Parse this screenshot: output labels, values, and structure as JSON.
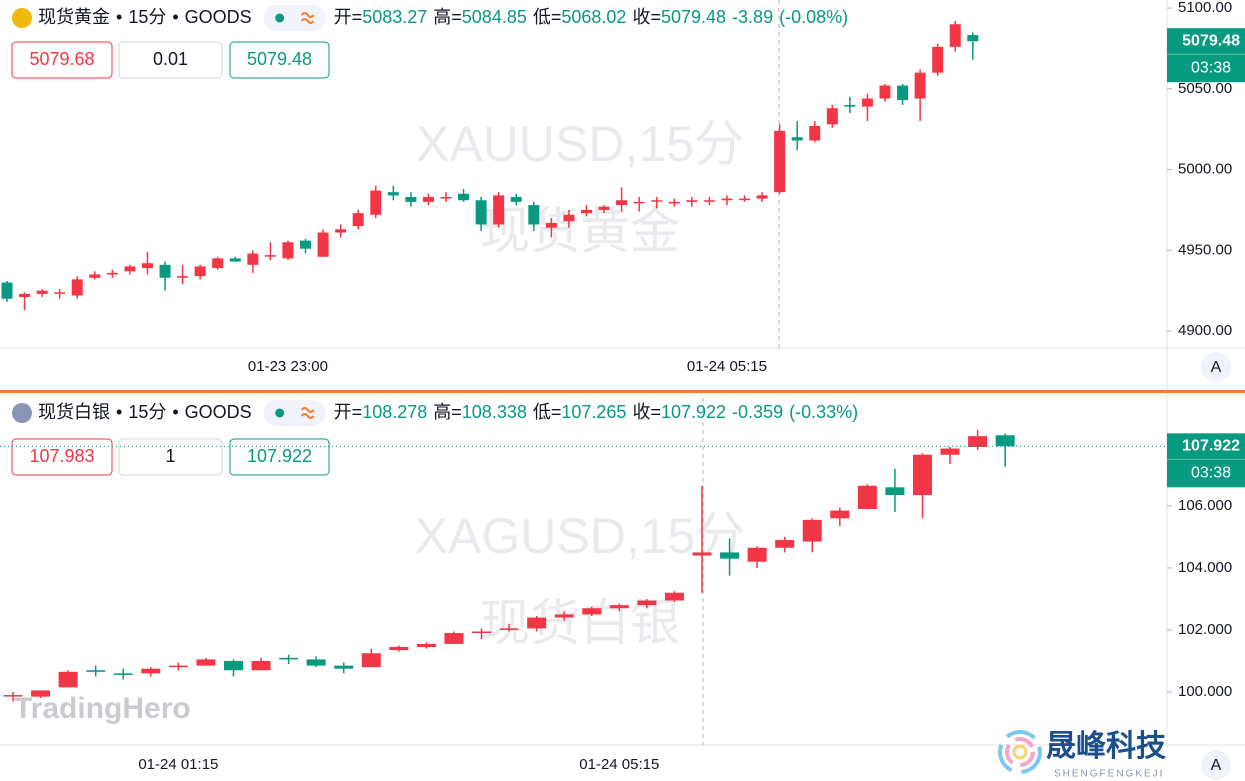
{
  "branding": {
    "left": "TradingHero",
    "right": "晟峰科技",
    "right_sub": "SHENGFENGKEJI"
  },
  "chart_data": [
    {
      "type": "candlestick",
      "symbol": "现货黄金",
      "interval": "15分",
      "source": "GOODS",
      "separator": "•",
      "quote": {
        "open_label": "开=",
        "open": 5083.27,
        "high_label": "高=",
        "high": 5084.85,
        "low_label": "低=",
        "low": 5068.02,
        "close_label": "收=",
        "close": 5079.48,
        "change": -3.89,
        "change_pct": {
          "value": -0.08,
          "label": "(-0.08%)"
        }
      },
      "sell_price": 5079.68,
      "quantity": 0.01,
      "buy_price": 5079.48,
      "countdown": "03:38",
      "auto_label": "A",
      "watermark": [
        "XAUUSD,15分",
        "现货黄金"
      ],
      "up_color": "#f23645",
      "down_color": "#089981",
      "categories": [
        null,
        null,
        null,
        null,
        null,
        null,
        null,
        null,
        null,
        null,
        null,
        null,
        null,
        null,
        null,
        null,
        "01-23 23:00",
        null,
        null,
        null,
        null,
        null,
        null,
        null,
        null,
        null,
        null,
        null,
        null,
        null,
        null,
        null,
        null,
        null,
        null,
        null,
        null,
        null,
        null,
        null,
        null,
        "01-24 05:15",
        null,
        null,
        null,
        null,
        null,
        null,
        null,
        null,
        null,
        null,
        null,
        null,
        null,
        null
      ],
      "open": [
        4930,
        4921,
        4923,
        4924,
        4922,
        4933,
        4935,
        4937,
        4939,
        4941,
        4933,
        4934,
        4939,
        4945,
        4941,
        4947,
        4945,
        4956,
        4946,
        4961,
        4965,
        4972,
        4986,
        4983,
        4980,
        4983,
        4985,
        4981,
        4966,
        4983,
        4978,
        4964,
        4968,
        4973,
        4975,
        4978,
        4980,
        4981,
        4979,
        4980,
        4981,
        4981,
        4982,
        4982,
        4986,
        5020,
        5018,
        5028,
        5040,
        5039,
        5044,
        5052,
        5044,
        5060,
        5076,
        5083.27
      ],
      "high": [
        4931,
        4924,
        4926,
        4926,
        4934,
        4937,
        4938,
        4941,
        4949,
        4943,
        4941,
        4941,
        4946,
        4946,
        4950,
        4955,
        4956,
        4957,
        4963,
        4966,
        4975,
        4990,
        4990,
        4986,
        4985,
        4986,
        4988,
        4983,
        4986,
        4985,
        4980,
        4970,
        4975,
        4978,
        4978,
        4989,
        4983,
        4983,
        4982,
        4983,
        4983,
        4984,
        4984,
        4986,
        5028,
        5030,
        5030,
        5040,
        5045,
        5047,
        5053,
        5053,
        5062,
        5078,
        5092,
        5084.85
      ],
      "low": [
        4918,
        4913,
        4921,
        4920,
        4920,
        4932,
        4933,
        4935,
        4935,
        4925,
        4929,
        4932,
        4938,
        4943,
        4936,
        4944,
        4944,
        4948,
        4946,
        4958,
        4963,
        4970,
        4981,
        4977,
        4978,
        4980,
        4980,
        4962,
        4964,
        4978,
        4962,
        4958,
        4964,
        4971,
        4973,
        4974,
        4974,
        4976,
        4977,
        4977,
        4978,
        4978,
        4980,
        4980,
        4985,
        5012,
        5017,
        5026,
        5035,
        5030,
        5042,
        5040,
        5030,
        5058,
        5073,
        5068.02
      ],
      "close": [
        4920,
        4923,
        4925,
        4924,
        4932,
        4935,
        4936,
        4940,
        4942,
        4933,
        4934,
        4940,
        4945,
        4943,
        4948,
        4947,
        4955,
        4951,
        4961,
        4963,
        4973,
        4987,
        4984,
        4980,
        4983,
        4983,
        4981,
        4966,
        4984,
        4980,
        4966,
        4967,
        4972,
        4975,
        4977,
        4981,
        4980,
        4981,
        4980,
        4981,
        4981,
        4982,
        4982,
        4984,
        5024,
        5018,
        5027,
        5038,
        5039,
        5044,
        5052,
        5043,
        5060,
        5076,
        5090,
        5079.48
      ],
      "ylim": [
        4889.5,
        5105
      ],
      "yticks": [
        {
          "value": 4900,
          "label": "4900.00"
        },
        {
          "value": 4950,
          "label": "4950.00"
        },
        {
          "value": 5000,
          "label": "5000.00"
        },
        {
          "value": 5050,
          "label": "5050.00"
        },
        {
          "value": 5100,
          "label": "5100.00"
        }
      ]
    },
    {
      "type": "candlestick",
      "symbol": "现货白银",
      "interval": "15分",
      "source": "GOODS",
      "separator": "•",
      "quote": {
        "open_label": "开=",
        "open": 108.278,
        "high_label": "高=",
        "high": 108.338,
        "low_label": "低=",
        "low": 107.265,
        "close_label": "收=",
        "close": 107.922,
        "change": -0.359,
        "change_pct": {
          "value": -0.33,
          "label": "(-0.33%)"
        }
      },
      "sell_price": 107.983,
      "quantity": 1,
      "buy_price": 107.922,
      "countdown": "03:38",
      "auto_label": "A",
      "watermark": [
        "XAGUSD,15分",
        "现货白银"
      ],
      "up_color": "#f23645",
      "down_color": "#089981",
      "categories": [
        null,
        null,
        null,
        null,
        null,
        null,
        "01-24 01:15",
        null,
        null,
        null,
        null,
        null,
        null,
        null,
        null,
        null,
        null,
        null,
        null,
        null,
        null,
        null,
        "01-24 05:15",
        null,
        null,
        null,
        null,
        null,
        null,
        null,
        null,
        null,
        null,
        null,
        null,
        null,
        null
      ],
      "open": [
        99.9,
        99.85,
        100.15,
        100.7,
        100.6,
        100.6,
        100.8,
        100.85,
        101.0,
        100.7,
        101.1,
        101.05,
        100.85,
        100.8,
        101.35,
        101.45,
        101.55,
        101.95,
        102.0,
        102.05,
        102.4,
        102.5,
        102.7,
        102.8,
        102.95,
        104.4,
        104.5,
        104.2,
        104.65,
        104.85,
        105.6,
        105.9,
        106.6,
        106.35,
        107.65,
        107.9,
        108.278
      ],
      "high": [
        100.0,
        100.0,
        100.7,
        100.85,
        100.75,
        100.8,
        100.95,
        101.1,
        101.05,
        101.1,
        101.2,
        101.15,
        100.95,
        101.4,
        101.5,
        101.6,
        101.95,
        102.05,
        102.2,
        102.45,
        102.6,
        102.75,
        102.85,
        103.0,
        103.25,
        106.65,
        104.95,
        104.7,
        105.0,
        105.6,
        105.95,
        106.7,
        107.2,
        107.7,
        107.9,
        108.45,
        108.338
      ],
      "low": [
        99.7,
        99.8,
        100.15,
        100.5,
        100.4,
        100.5,
        100.7,
        100.85,
        100.5,
        100.7,
        100.9,
        100.8,
        100.6,
        100.8,
        101.3,
        101.4,
        101.55,
        101.7,
        101.95,
        101.95,
        102.3,
        102.45,
        102.6,
        102.7,
        102.9,
        103.2,
        103.75,
        104.0,
        104.5,
        104.5,
        105.35,
        105.9,
        105.8,
        105.6,
        107.35,
        107.8,
        107.265
      ],
      "close": [
        99.9,
        100.05,
        100.65,
        100.65,
        100.55,
        100.75,
        100.85,
        101.05,
        100.7,
        101.0,
        101.05,
        100.85,
        100.75,
        101.25,
        101.45,
        101.55,
        101.9,
        101.95,
        102.05,
        102.4,
        102.5,
        102.7,
        102.8,
        102.95,
        103.2,
        104.5,
        104.3,
        104.65,
        104.9,
        105.55,
        105.85,
        106.65,
        106.35,
        107.65,
        107.85,
        108.25,
        107.922
      ],
      "ylim": [
        98.29,
        109.48
      ],
      "yticks": [
        {
          "value": 100,
          "label": "100.000"
        },
        {
          "value": 102,
          "label": "102.000"
        },
        {
          "value": 104,
          "label": "104.000"
        },
        {
          "value": 106,
          "label": "106.000"
        }
      ]
    }
  ]
}
